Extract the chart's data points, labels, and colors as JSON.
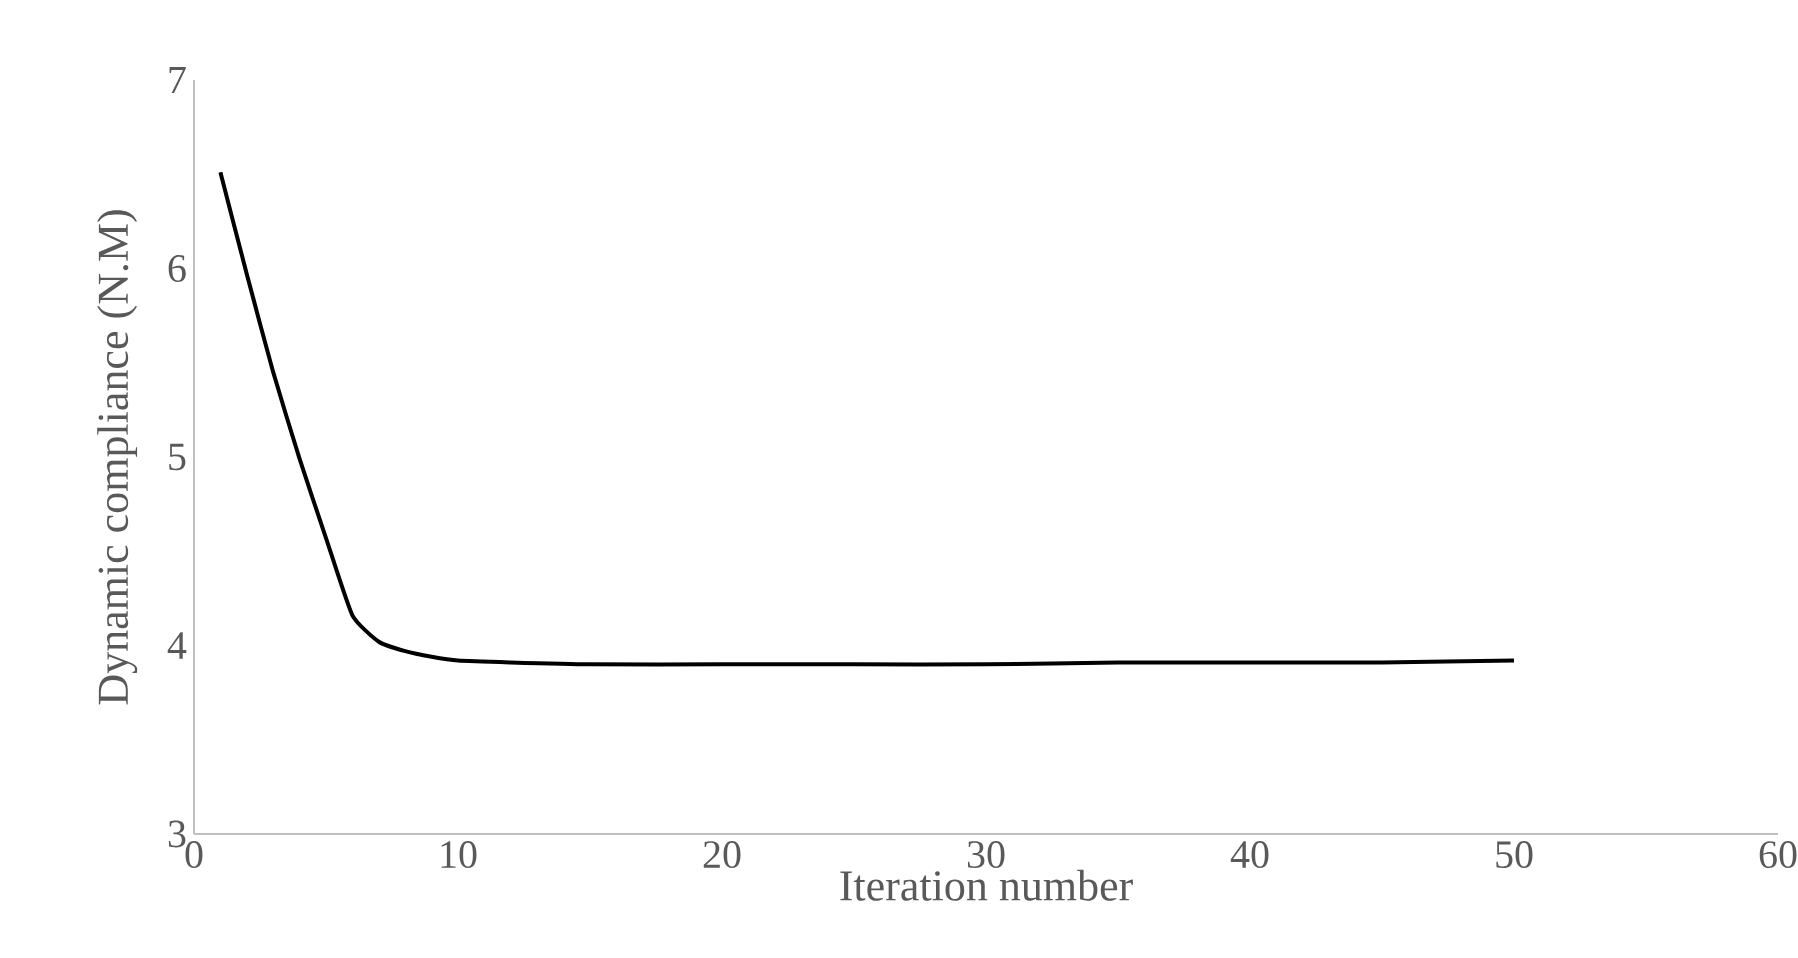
{
  "chart_data": {
    "type": "line",
    "xlabel": "Iteration  number",
    "ylabel": "Dynamic compliance (N.M)",
    "x": [
      1,
      2,
      3,
      4,
      5,
      6,
      7,
      8,
      9,
      10,
      12,
      15,
      20,
      25,
      30,
      35,
      40,
      45,
      50
    ],
    "series": [
      {
        "color": "#000000",
        "values": [
          6.51,
          5.97,
          5.45,
          4.99,
          4.57,
          4.16,
          4.02,
          3.97,
          3.94,
          3.92,
          3.91,
          3.9,
          3.9,
          3.9,
          3.9,
          3.91,
          3.91,
          3.91,
          3.92
        ]
      }
    ],
    "xlim": [
      0,
      60
    ],
    "xticks": [
      0,
      10,
      20,
      30,
      40,
      50,
      60
    ],
    "ylim": [
      3,
      7
    ],
    "yticks": [
      3,
      4,
      5,
      6,
      7
    ],
    "grid": false,
    "marker": "none",
    "line_style": "solid"
  }
}
